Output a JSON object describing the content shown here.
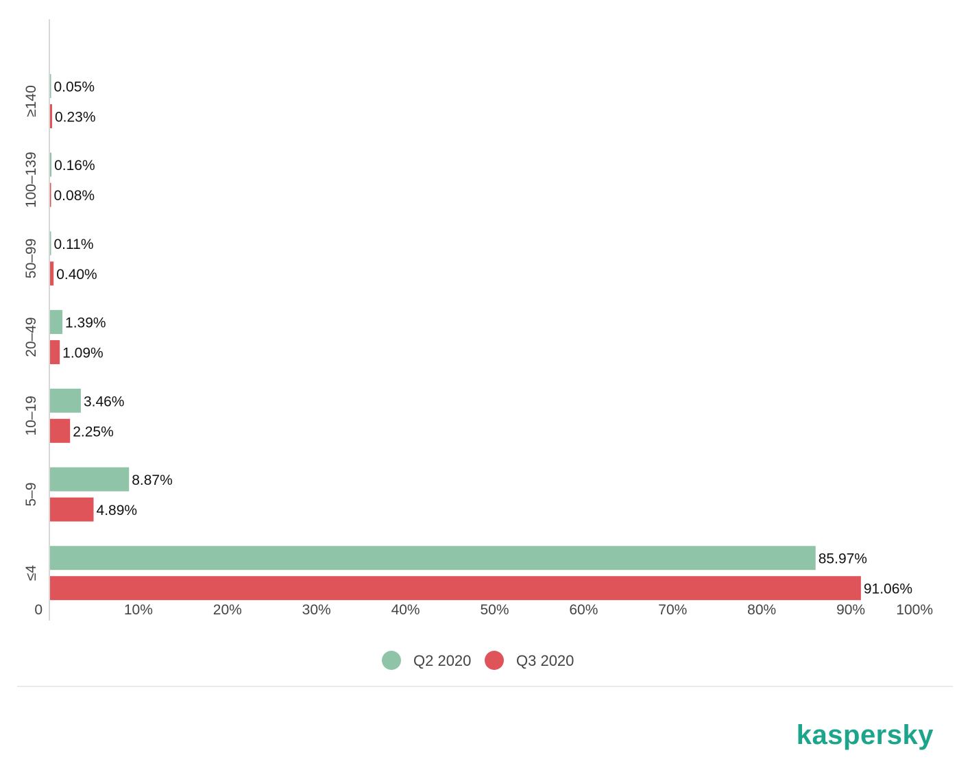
{
  "chart_data": {
    "type": "bar",
    "orientation": "horizontal",
    "categories": [
      "≥140",
      "100–139",
      "50–99",
      "20–49",
      "10–19",
      "5–9",
      "≤4"
    ],
    "series": [
      {
        "name": "Q2 2020",
        "color": "#8fc4a8",
        "values": [
          0.05,
          0.16,
          0.11,
          1.39,
          3.46,
          8.87,
          85.97
        ],
        "labels": [
          "0.05%",
          "0.16%",
          "0.11%",
          "1.39%",
          "3.46%",
          "8.87%",
          "85.97%"
        ]
      },
      {
        "name": "Q3 2020",
        "color": "#de5458",
        "values": [
          0.23,
          0.08,
          0.4,
          1.09,
          2.25,
          4.89,
          91.06
        ],
        "labels": [
          "0.23%",
          "0.08%",
          "0.40%",
          "1.09%",
          "2.25%",
          "4.89%",
          "91.06%"
        ]
      }
    ],
    "xlim": [
      0,
      100
    ],
    "x_ticks": [
      "0",
      "10%",
      "20%",
      "30%",
      "40%",
      "50%",
      "60%",
      "70%",
      "80%",
      "90%",
      "100%"
    ],
    "grid": false,
    "legend_position": "bottom-center"
  },
  "brand": {
    "text": "kaspersky",
    "color": "#1da58b"
  }
}
